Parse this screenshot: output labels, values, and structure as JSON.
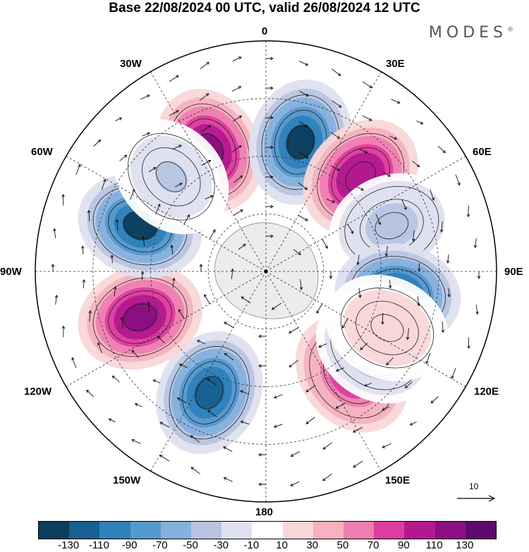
{
  "title": "Base 22/08/2024 00 UTC, valid 26/08/2024 12 UTC",
  "brand": "MODES",
  "brand_mark": "®",
  "lon_labels": {
    "l0": "0",
    "l30e": "30E",
    "l60e": "60E",
    "l90e": "90E",
    "l120e": "120E",
    "l150e": "150E",
    "l180": "180",
    "l150w": "150W",
    "l120w": "120W",
    "l90w": "90W",
    "l60w": "60W",
    "l30w": "30W"
  },
  "vector_scale_label": "10",
  "colorbar": {
    "colors": [
      "#0d3d5c",
      "#17608f",
      "#2f80bb",
      "#5599cc",
      "#85b1dd",
      "#b7c5e2",
      "#dfe0ef",
      "#ffffff",
      "#f9d7d8",
      "#f6b2c0",
      "#ee7fb1",
      "#dd3d9f",
      "#b2198e",
      "#8a0f82",
      "#5c0a6e"
    ],
    "labels": [
      "-130",
      "-110",
      "-90",
      "-70",
      "-50",
      "-30",
      "-10",
      "10",
      "30",
      "50",
      "70",
      "90",
      "110",
      "130"
    ]
  },
  "map_data": {
    "projection": "south-polar-stereographic",
    "field": "anomaly (shaded) with contours and wind vectors",
    "cells": [
      {
        "lon": -25,
        "sign": "pos",
        "value": 120
      },
      {
        "lon": 15,
        "sign": "neg",
        "value": -130
      },
      {
        "lon": 45,
        "sign": "pos",
        "value": 110
      },
      {
        "lon": 70,
        "sign": "neg",
        "value": -40
      },
      {
        "lon": 100,
        "sign": "neg",
        "value": -120
      },
      {
        "lon": 140,
        "sign": "pos",
        "value": 100
      },
      {
        "lon": -155,
        "sign": "neg",
        "value": -110
      },
      {
        "lon": -110,
        "sign": "pos",
        "value": 120
      },
      {
        "lon": -70,
        "sign": "neg",
        "value": -130
      },
      {
        "lon": -45,
        "sign": "neg",
        "value": -30
      },
      {
        "lon": 125,
        "sign": "neg",
        "value": -50
      },
      {
        "lon": 115,
        "sign": "pos",
        "value": 30
      }
    ]
  }
}
